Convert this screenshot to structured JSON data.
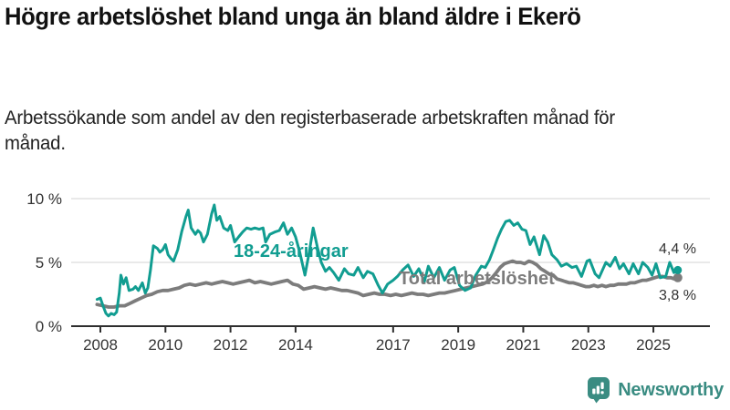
{
  "header": {
    "title": "Högre arbetslöshet bland unga än bland äldre i Ekerö",
    "subtitle": "Arbetssökande som andel av den registerbaserade arbetskraften månad för månad."
  },
  "chart_data": {
    "type": "line",
    "title": "Högre arbetslöshet bland unga än bland äldre i Ekerö",
    "xlabel": "",
    "ylabel": "",
    "xlim": [
      2007.75,
      2026.3
    ],
    "ylim": [
      0,
      10
    ],
    "grid": "horizontal",
    "y_ticks": [
      {
        "value": 0,
        "label": "0 %"
      },
      {
        "value": 5,
        "label": "5 %"
      },
      {
        "value": 10,
        "label": "10 %"
      }
    ],
    "y_gridlines": [
      5,
      10
    ],
    "x_ticks": [
      {
        "value": 2008,
        "label": "2008"
      },
      {
        "value": 2010,
        "label": "2010"
      },
      {
        "value": 2012,
        "label": "2012"
      },
      {
        "value": 2014,
        "label": "2014"
      },
      {
        "value": 2017,
        "label": "2017"
      },
      {
        "value": 2019,
        "label": "2019"
      },
      {
        "value": 2021,
        "label": "2021"
      },
      {
        "value": 2023,
        "label": "2023"
      },
      {
        "value": 2025,
        "label": "2025"
      }
    ],
    "series": [
      {
        "name": "Total arbetslöshet",
        "color": "#7c7c7c",
        "end_label": "3,8 %",
        "end_value": 3.8,
        "points": [
          [
            2007.9,
            1.7
          ],
          [
            2008.08,
            1.6
          ],
          [
            2008.25,
            1.5
          ],
          [
            2008.42,
            1.5
          ],
          [
            2008.58,
            1.6
          ],
          [
            2008.75,
            1.6
          ],
          [
            2008.92,
            1.8
          ],
          [
            2009.08,
            2.0
          ],
          [
            2009.25,
            2.2
          ],
          [
            2009.42,
            2.4
          ],
          [
            2009.58,
            2.5
          ],
          [
            2009.75,
            2.7
          ],
          [
            2009.92,
            2.8
          ],
          [
            2010.08,
            2.8
          ],
          [
            2010.25,
            2.9
          ],
          [
            2010.42,
            3.0
          ],
          [
            2010.58,
            3.2
          ],
          [
            2010.75,
            3.3
          ],
          [
            2010.92,
            3.2
          ],
          [
            2011.08,
            3.3
          ],
          [
            2011.25,
            3.4
          ],
          [
            2011.42,
            3.3
          ],
          [
            2011.58,
            3.4
          ],
          [
            2011.75,
            3.5
          ],
          [
            2011.92,
            3.4
          ],
          [
            2012.08,
            3.3
          ],
          [
            2012.25,
            3.4
          ],
          [
            2012.42,
            3.5
          ],
          [
            2012.58,
            3.6
          ],
          [
            2012.75,
            3.4
          ],
          [
            2012.92,
            3.5
          ],
          [
            2013.08,
            3.4
          ],
          [
            2013.25,
            3.3
          ],
          [
            2013.42,
            3.4
          ],
          [
            2013.58,
            3.5
          ],
          [
            2013.75,
            3.6
          ],
          [
            2013.92,
            3.3
          ],
          [
            2014.08,
            3.2
          ],
          [
            2014.25,
            2.9
          ],
          [
            2014.42,
            3.0
          ],
          [
            2014.58,
            3.1
          ],
          [
            2014.75,
            3.0
          ],
          [
            2014.92,
            2.9
          ],
          [
            2015.08,
            3.0
          ],
          [
            2015.25,
            2.9
          ],
          [
            2015.42,
            2.8
          ],
          [
            2015.58,
            2.8
          ],
          [
            2015.75,
            2.7
          ],
          [
            2015.92,
            2.6
          ],
          [
            2016.08,
            2.4
          ],
          [
            2016.25,
            2.5
          ],
          [
            2016.42,
            2.6
          ],
          [
            2016.58,
            2.5
          ],
          [
            2016.75,
            2.5
          ],
          [
            2016.92,
            2.4
          ],
          [
            2017.08,
            2.5
          ],
          [
            2017.25,
            2.4
          ],
          [
            2017.42,
            2.5
          ],
          [
            2017.58,
            2.6
          ],
          [
            2017.75,
            2.5
          ],
          [
            2017.92,
            2.5
          ],
          [
            2018.08,
            2.4
          ],
          [
            2018.25,
            2.5
          ],
          [
            2018.42,
            2.6
          ],
          [
            2018.58,
            2.6
          ],
          [
            2018.75,
            2.7
          ],
          [
            2018.92,
            2.8
          ],
          [
            2019.08,
            2.9
          ],
          [
            2019.25,
            3.0
          ],
          [
            2019.42,
            3.1
          ],
          [
            2019.58,
            3.2
          ],
          [
            2019.75,
            3.3
          ],
          [
            2019.92,
            3.5
          ],
          [
            2020.04,
            3.8
          ],
          [
            2020.17,
            4.2
          ],
          [
            2020.29,
            4.6
          ],
          [
            2020.42,
            4.9
          ],
          [
            2020.54,
            5.0
          ],
          [
            2020.67,
            5.1
          ],
          [
            2020.79,
            5.0
          ],
          [
            2020.92,
            5.0
          ],
          [
            2021.04,
            4.9
          ],
          [
            2021.17,
            5.1
          ],
          [
            2021.29,
            5.0
          ],
          [
            2021.42,
            4.8
          ],
          [
            2021.54,
            4.5
          ],
          [
            2021.67,
            4.3
          ],
          [
            2021.79,
            4.1
          ],
          [
            2021.92,
            4.0
          ],
          [
            2022.04,
            3.7
          ],
          [
            2022.17,
            3.6
          ],
          [
            2022.29,
            3.5
          ],
          [
            2022.42,
            3.4
          ],
          [
            2022.54,
            3.4
          ],
          [
            2022.67,
            3.3
          ],
          [
            2022.79,
            3.2
          ],
          [
            2022.92,
            3.1
          ],
          [
            2023.04,
            3.1
          ],
          [
            2023.17,
            3.2
          ],
          [
            2023.29,
            3.1
          ],
          [
            2023.42,
            3.2
          ],
          [
            2023.54,
            3.1
          ],
          [
            2023.67,
            3.2
          ],
          [
            2023.79,
            3.2
          ],
          [
            2023.92,
            3.3
          ],
          [
            2024.04,
            3.3
          ],
          [
            2024.17,
            3.3
          ],
          [
            2024.29,
            3.4
          ],
          [
            2024.42,
            3.4
          ],
          [
            2024.54,
            3.5
          ],
          [
            2024.67,
            3.6
          ],
          [
            2024.79,
            3.6
          ],
          [
            2024.92,
            3.7
          ],
          [
            2025.04,
            3.8
          ],
          [
            2025.17,
            3.9
          ],
          [
            2025.29,
            3.9
          ],
          [
            2025.42,
            3.8
          ],
          [
            2025.54,
            3.8
          ],
          [
            2025.65,
            3.7
          ],
          [
            2025.75,
            3.8
          ]
        ]
      },
      {
        "name": "18-24-åringar",
        "color": "#119d91",
        "end_label": "4,4 %",
        "end_value": 4.4,
        "points": [
          [
            2007.9,
            2.1
          ],
          [
            2008.0,
            2.2
          ],
          [
            2008.08,
            1.6
          ],
          [
            2008.17,
            1.0
          ],
          [
            2008.25,
            0.8
          ],
          [
            2008.33,
            1.0
          ],
          [
            2008.42,
            0.9
          ],
          [
            2008.5,
            1.1
          ],
          [
            2008.58,
            2.6
          ],
          [
            2008.63,
            4.0
          ],
          [
            2008.71,
            3.3
          ],
          [
            2008.79,
            3.8
          ],
          [
            2008.88,
            2.8
          ],
          [
            2009.0,
            2.9
          ],
          [
            2009.08,
            3.1
          ],
          [
            2009.17,
            2.8
          ],
          [
            2009.29,
            3.4
          ],
          [
            2009.38,
            2.6
          ],
          [
            2009.46,
            3.0
          ],
          [
            2009.54,
            4.4
          ],
          [
            2009.63,
            6.3
          ],
          [
            2009.75,
            6.1
          ],
          [
            2009.83,
            5.8
          ],
          [
            2009.92,
            6.0
          ],
          [
            2010.0,
            6.4
          ],
          [
            2010.08,
            5.6
          ],
          [
            2010.17,
            5.3
          ],
          [
            2010.25,
            5.1
          ],
          [
            2010.38,
            6.0
          ],
          [
            2010.5,
            7.4
          ],
          [
            2010.63,
            8.6
          ],
          [
            2010.7,
            9.1
          ],
          [
            2010.79,
            7.7
          ],
          [
            2010.92,
            7.2
          ],
          [
            2011.0,
            7.5
          ],
          [
            2011.08,
            7.3
          ],
          [
            2011.17,
            6.6
          ],
          [
            2011.29,
            7.2
          ],
          [
            2011.42,
            8.8
          ],
          [
            2011.5,
            9.5
          ],
          [
            2011.58,
            8.3
          ],
          [
            2011.67,
            8.6
          ],
          [
            2011.79,
            7.7
          ],
          [
            2011.92,
            7.5
          ],
          [
            2012.0,
            7.9
          ],
          [
            2012.13,
            6.6
          ],
          [
            2012.25,
            7.0
          ],
          [
            2012.38,
            7.4
          ],
          [
            2012.5,
            7.7
          ],
          [
            2012.63,
            7.6
          ],
          [
            2012.75,
            7.7
          ],
          [
            2012.88,
            7.6
          ],
          [
            2013.0,
            7.7
          ],
          [
            2013.08,
            6.6
          ],
          [
            2013.21,
            7.2
          ],
          [
            2013.38,
            7.4
          ],
          [
            2013.5,
            7.5
          ],
          [
            2013.63,
            8.1
          ],
          [
            2013.75,
            7.2
          ],
          [
            2013.88,
            7.7
          ],
          [
            2014.0,
            7.0
          ],
          [
            2014.13,
            5.8
          ],
          [
            2014.29,
            4.0
          ],
          [
            2014.42,
            5.8
          ],
          [
            2014.54,
            7.7
          ],
          [
            2014.67,
            6.2
          ],
          [
            2014.79,
            5.0
          ],
          [
            2014.92,
            4.3
          ],
          [
            2015.04,
            4.6
          ],
          [
            2015.17,
            4.2
          ],
          [
            2015.33,
            3.6
          ],
          [
            2015.5,
            4.5
          ],
          [
            2015.63,
            4.1
          ],
          [
            2015.79,
            4.0
          ],
          [
            2015.92,
            4.6
          ],
          [
            2016.08,
            3.8
          ],
          [
            2016.21,
            4.3
          ],
          [
            2016.38,
            4.1
          ],
          [
            2016.54,
            3.2
          ],
          [
            2016.67,
            2.6
          ],
          [
            2016.83,
            3.3
          ],
          [
            2017.0,
            3.6
          ],
          [
            2017.13,
            3.9
          ],
          [
            2017.29,
            4.4
          ],
          [
            2017.46,
            4.8
          ],
          [
            2017.63,
            3.9
          ],
          [
            2017.79,
            4.5
          ],
          [
            2017.96,
            3.5
          ],
          [
            2018.08,
            4.7
          ],
          [
            2018.25,
            3.8
          ],
          [
            2018.42,
            4.6
          ],
          [
            2018.58,
            3.6
          ],
          [
            2018.75,
            4.4
          ],
          [
            2018.88,
            4.6
          ],
          [
            2019.04,
            3.2
          ],
          [
            2019.21,
            2.8
          ],
          [
            2019.38,
            3.0
          ],
          [
            2019.54,
            4.0
          ],
          [
            2019.71,
            4.7
          ],
          [
            2019.83,
            4.6
          ],
          [
            2019.96,
            5.2
          ],
          [
            2020.08,
            6.0
          ],
          [
            2020.21,
            6.9
          ],
          [
            2020.33,
            7.6
          ],
          [
            2020.46,
            8.2
          ],
          [
            2020.58,
            8.3
          ],
          [
            2020.71,
            7.9
          ],
          [
            2020.83,
            8.1
          ],
          [
            2020.96,
            7.6
          ],
          [
            2021.08,
            7.5
          ],
          [
            2021.21,
            6.4
          ],
          [
            2021.33,
            7.0
          ],
          [
            2021.5,
            5.6
          ],
          [
            2021.63,
            7.1
          ],
          [
            2021.75,
            6.6
          ],
          [
            2021.88,
            5.6
          ],
          [
            2022.04,
            5.2
          ],
          [
            2022.17,
            4.7
          ],
          [
            2022.33,
            4.9
          ],
          [
            2022.5,
            4.6
          ],
          [
            2022.63,
            4.7
          ],
          [
            2022.79,
            3.9
          ],
          [
            2022.96,
            5.1
          ],
          [
            2023.04,
            5.2
          ],
          [
            2023.21,
            4.1
          ],
          [
            2023.33,
            3.8
          ],
          [
            2023.54,
            5.0
          ],
          [
            2023.67,
            4.7
          ],
          [
            2023.83,
            5.4
          ],
          [
            2023.96,
            4.5
          ],
          [
            2024.08,
            4.9
          ],
          [
            2024.25,
            4.1
          ],
          [
            2024.38,
            4.9
          ],
          [
            2024.54,
            4.1
          ],
          [
            2024.67,
            5.0
          ],
          [
            2024.83,
            4.6
          ],
          [
            2024.96,
            4.0
          ],
          [
            2025.08,
            4.9
          ],
          [
            2025.21,
            3.8
          ],
          [
            2025.38,
            3.9
          ],
          [
            2025.5,
            5.0
          ],
          [
            2025.63,
            4.2
          ],
          [
            2025.75,
            4.4
          ]
        ]
      }
    ],
    "colors": {
      "grid": "#dcdcdc",
      "axis": "#2e2e2e",
      "tick_text": "#333333",
      "end_label_text": "#333333"
    }
  },
  "footer": {
    "brand": "Newsworthy",
    "brand_color": "#3a8c82",
    "logo_icon": "bar-chart-speech-bubble"
  }
}
